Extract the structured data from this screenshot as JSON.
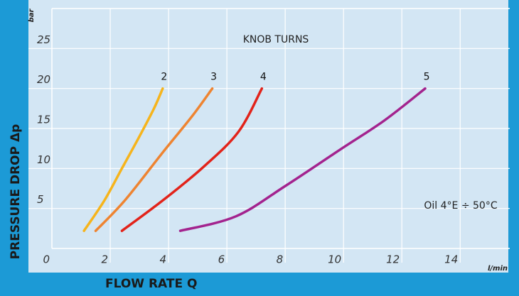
{
  "chart_data": {
    "type": "line",
    "xlabel": "FLOW RATE Q",
    "ylabel": "PRESSURE DROP Δp",
    "x_unit": "l/min",
    "y_unit": "bar",
    "annotations": [
      "KNOB TURNS",
      "Oil 4°E ÷ 50°C"
    ],
    "xlim": [
      0,
      15.7
    ],
    "ylim": [
      0,
      30
    ],
    "xticks": [
      0,
      2,
      4,
      6,
      8,
      10,
      12,
      14
    ],
    "yticks": [
      5,
      10,
      15,
      20,
      25
    ],
    "grid": true,
    "series": [
      {
        "name": "2",
        "color": "#f6b41c",
        "x": [
          1.1,
          1.8,
          2.4,
          3.0,
          3.5,
          3.8
        ],
        "values": [
          2.2,
          6,
          10,
          14,
          17.5,
          20
        ]
      },
      {
        "name": "3",
        "color": "#ee8431",
        "x": [
          1.5,
          2.5,
          3.8,
          4.8,
          5.5
        ],
        "values": [
          2.2,
          6,
          12,
          16.5,
          20
        ]
      },
      {
        "name": "4",
        "color": "#e2231a",
        "x": [
          2.4,
          3.8,
          5.2,
          6.4,
          7.2
        ],
        "values": [
          2.2,
          6,
          10.2,
          14.6,
          20
        ]
      },
      {
        "name": "5",
        "color": "#a3238e",
        "x": [
          4.4,
          6.3,
          8.0,
          9.9,
          11.4,
          12.8
        ],
        "values": [
          2.2,
          4,
          7.8,
          12.4,
          16,
          20
        ]
      }
    ]
  }
}
